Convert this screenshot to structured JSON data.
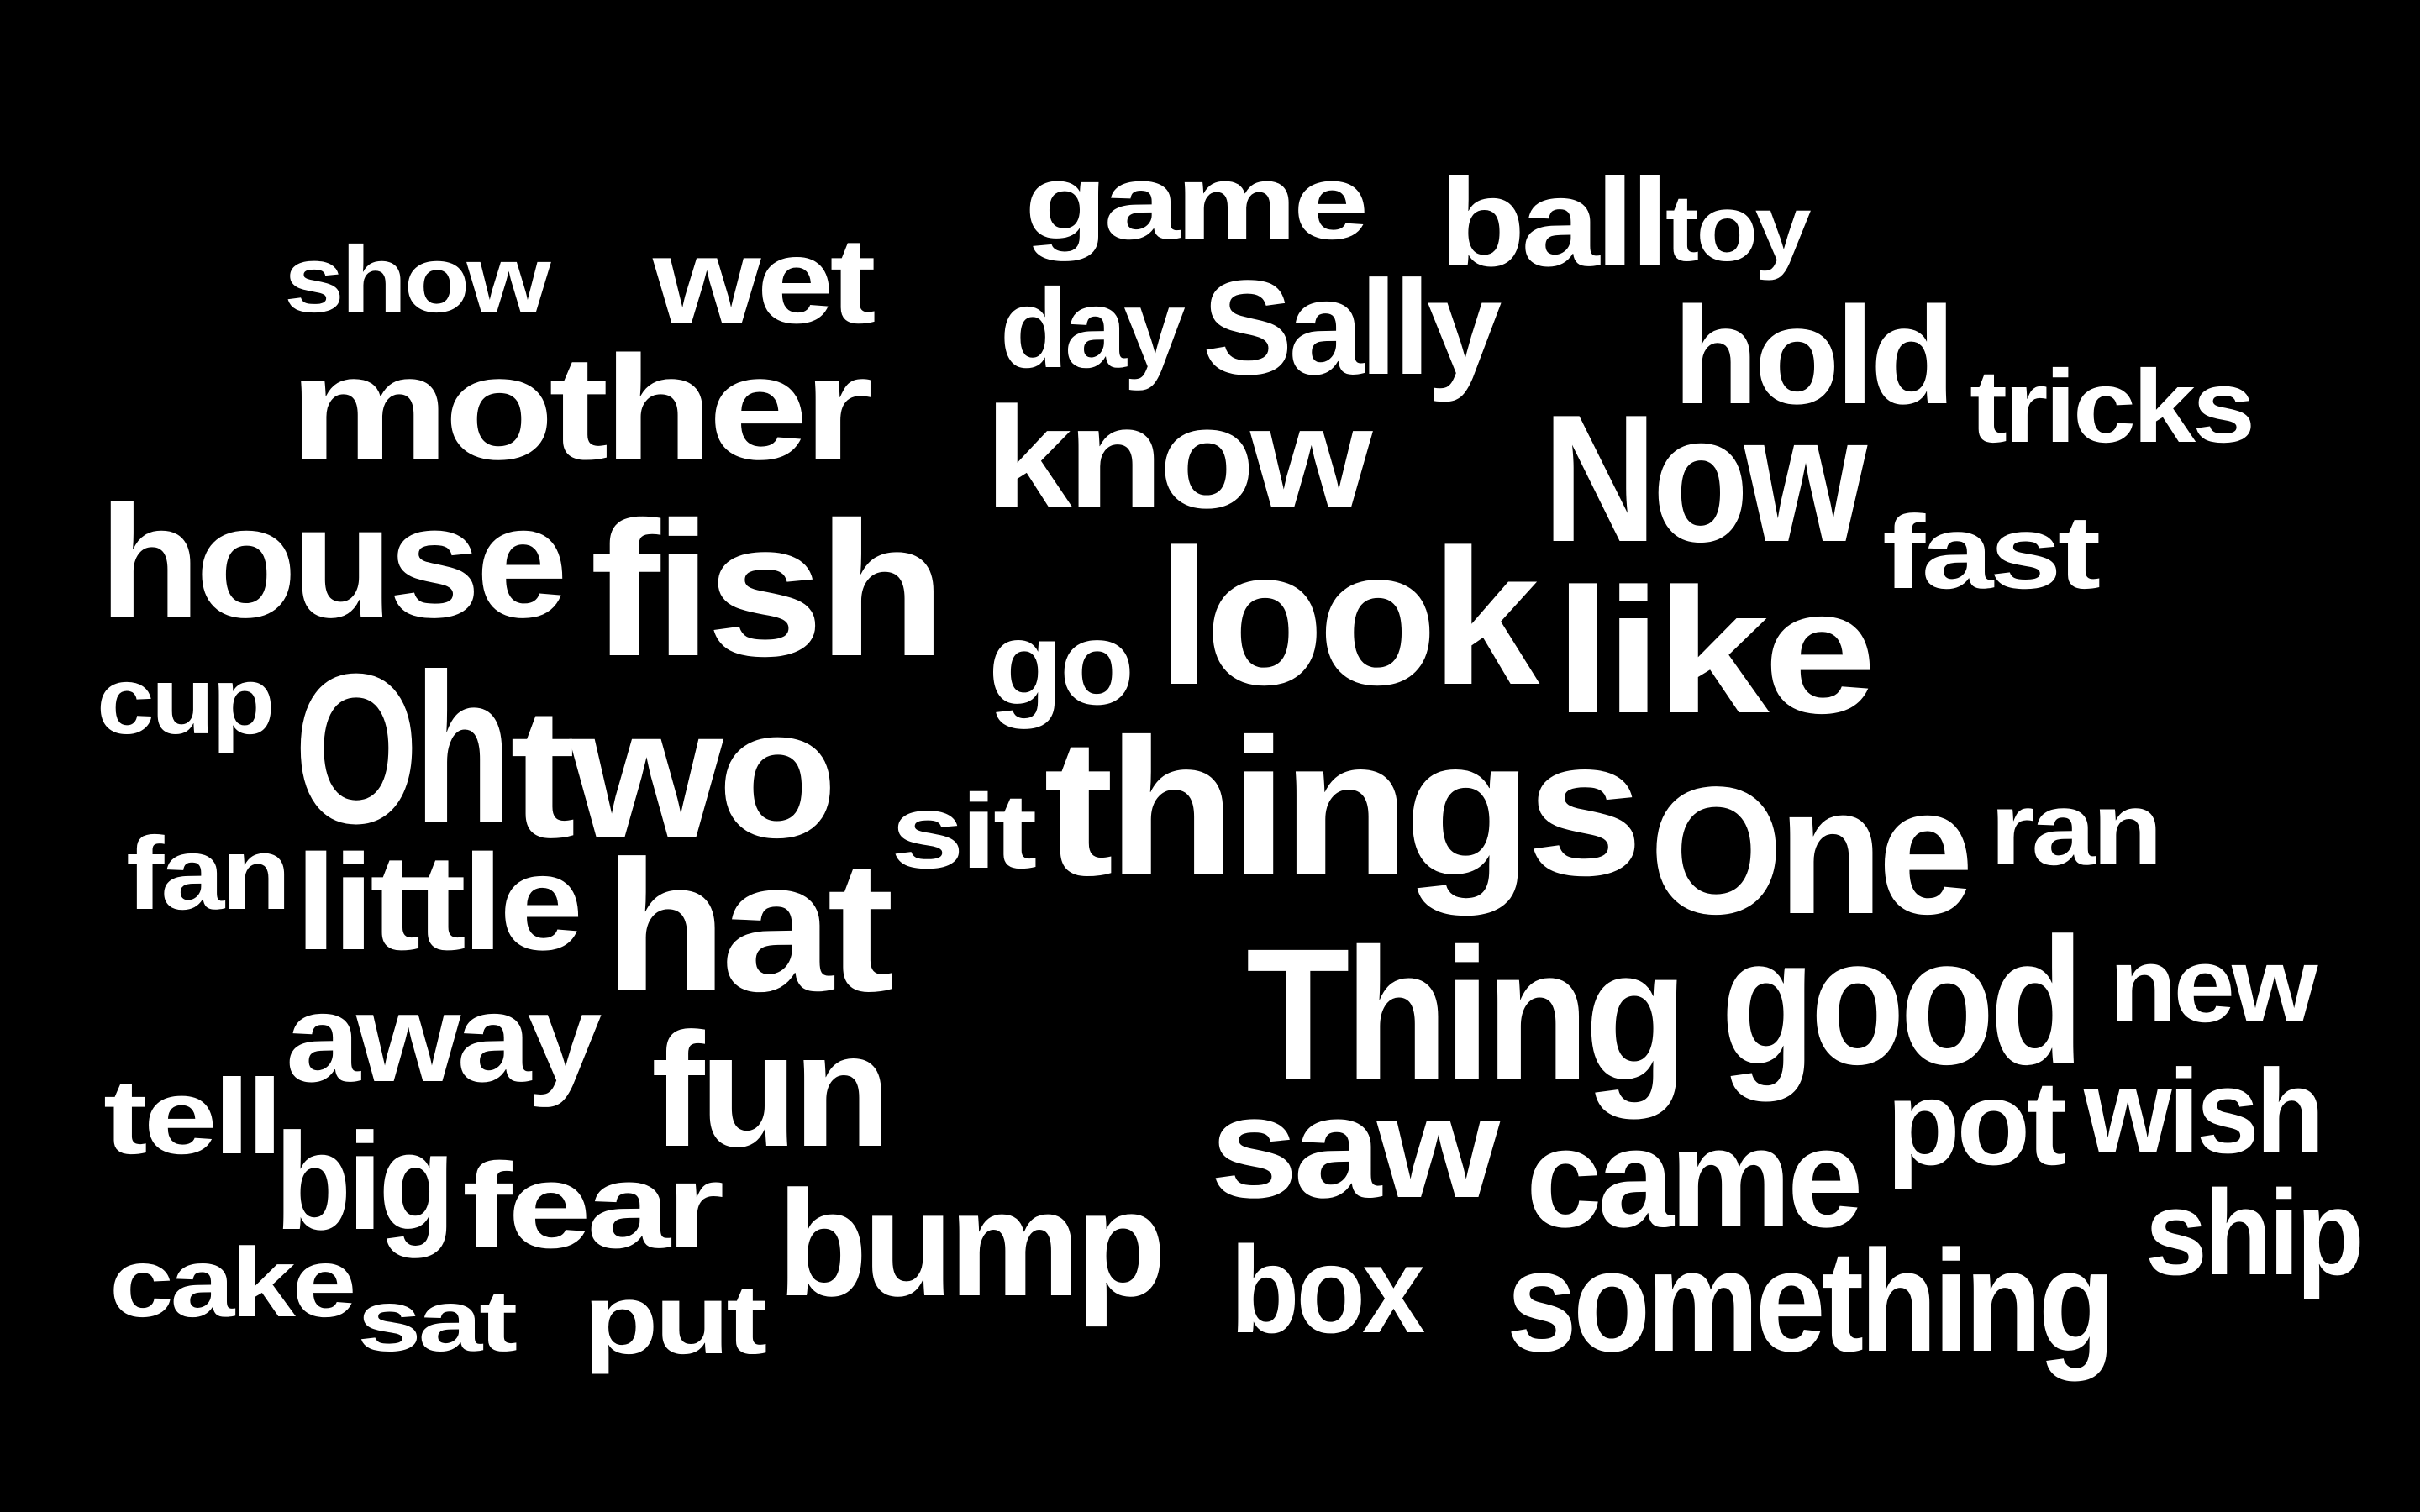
{
  "cloud": {
    "background": "#000000",
    "text_color": "#ffffff",
    "words": [
      "game",
      "ball",
      "toy",
      "show",
      "wet",
      "day",
      "Sally",
      "hold",
      "mother",
      "tricks",
      "know",
      "Now",
      "house",
      "fish",
      "fast",
      "look",
      "go",
      "like",
      "cup",
      "Oh",
      "two",
      "sit",
      "things",
      "One",
      "ran",
      "fan",
      "little",
      "hat",
      "Thing",
      "good",
      "new",
      "away",
      "fun",
      "tell",
      "saw",
      "pot",
      "wish",
      "big",
      "came",
      "fear",
      "ship",
      "bump",
      "cake",
      "box",
      "something",
      "sat",
      "put"
    ]
  }
}
